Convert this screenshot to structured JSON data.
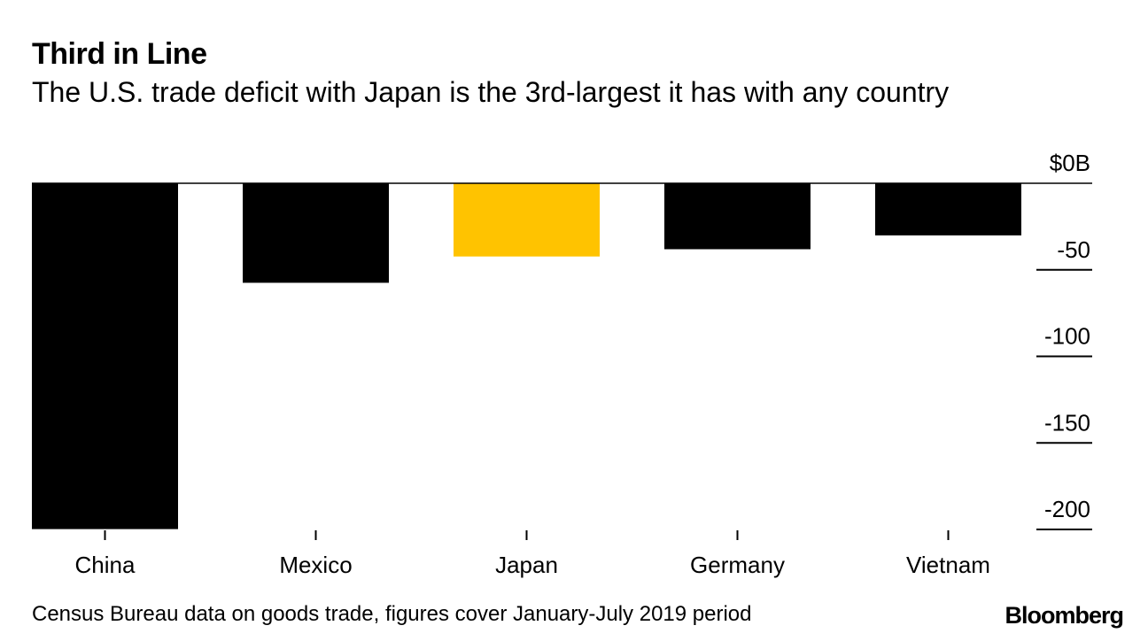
{
  "header": {
    "title": "Third in Line",
    "subtitle": "The U.S. trade deficit with Japan is the 3rd-largest it has with any country"
  },
  "footer": {
    "source": "Census Bureau data on goods trade, figures cover January-July 2019 period",
    "brand": "Bloomberg"
  },
  "chart_data": {
    "type": "bar",
    "title": "Third in Line",
    "subtitle": "The U.S. trade deficit with Japan is the 3rd-largest it has with any country",
    "categories": [
      "China",
      "Mexico",
      "Japan",
      "Germany",
      "Vietnam"
    ],
    "values": [
      -199.8,
      -57.5,
      -42.3,
      -38.1,
      -30.1
    ],
    "highlight": "Japan",
    "colors": {
      "default": "#000000",
      "highlight": "#FFC300"
    },
    "xlabel": "",
    "ylabel": "",
    "y_unit_label": "$0B",
    "y_ticks": [
      0,
      -50,
      -100,
      -150,
      -200
    ],
    "y_tick_labels": [
      "$0B",
      "-50",
      "-100",
      "-150",
      "-200"
    ],
    "ylim": [
      -200,
      0
    ],
    "grid": false,
    "axis_position": "right"
  }
}
